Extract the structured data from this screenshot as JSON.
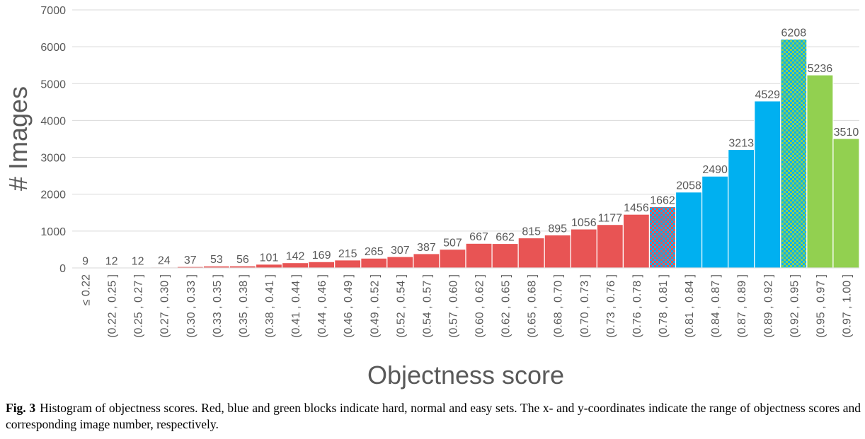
{
  "chart_data": {
    "type": "bar",
    "title": "",
    "xlabel": "Objectness score",
    "ylabel": "# Images",
    "ylim": [
      0,
      7000
    ],
    "yticks": [
      0,
      1000,
      2000,
      3000,
      4000,
      5000,
      6000,
      7000
    ],
    "grid": "horizontal",
    "categories": [
      "≤ 0.22",
      "(0.22 , 0.25 ]",
      "(0.25 , 0.27 ]",
      "(0.27 , 0.30 ]",
      "(0.30 , 0.33 ]",
      "(0.33 , 0.35 ]",
      "(0.35 , 0.38 ]",
      "(0.38 , 0.41 ]",
      "(0.41 , 0.44 ]",
      "(0.44 , 0.46 ]",
      "(0.46 , 0.49 ]",
      "(0.49 , 0.52 ]",
      "(0.52 , 0.54 ]",
      "(0.54 , 0.57 ]",
      "(0.57 , 0.60 ]",
      "(0.60 , 0.62 ]",
      "(0.62 , 0.65 ]",
      "(0.65 , 0.68 ]",
      "(0.68 , 0.70 ]",
      "(0.70 , 0.73 ]",
      "(0.73 , 0.76 ]",
      "(0.76 , 0.78 ]",
      "(0.78 , 0.81 ]",
      "(0.81 , 0.84 ]",
      "(0.84 , 0.87 ]",
      "(0.87 , 0.89 ]",
      "(0.89 , 0.92 ]",
      "(0.92 , 0.95 ]",
      "(0.95 , 0.97 ]",
      "(0.97 , 1.00 ]"
    ],
    "values": [
      9,
      12,
      12,
      24,
      37,
      53,
      56,
      101,
      142,
      169,
      215,
      265,
      307,
      387,
      507,
      667,
      662,
      815,
      895,
      1056,
      1177,
      1456,
      1662,
      2058,
      2490,
      3213,
      4529,
      6208,
      5236,
      3510
    ],
    "bar_fill": [
      "red",
      "red",
      "red",
      "red",
      "red",
      "red",
      "red",
      "red",
      "red",
      "red",
      "red",
      "red",
      "red",
      "red",
      "red",
      "red",
      "red",
      "red",
      "red",
      "red",
      "red",
      "red",
      "red-blue-checker",
      "blue",
      "blue",
      "blue",
      "blue",
      "green-blue-checker",
      "green",
      "green"
    ],
    "colors": {
      "red": "#e85454",
      "blue": "#00b0f0",
      "green": "#92d050"
    }
  },
  "caption": {
    "label": "Fig. 3",
    "text": "Histogram of objectness scores. Red, blue and green blocks indicate hard, normal and easy sets. The x- and y-coordinates indicate the range of objectness scores and corresponding image number, respectively."
  }
}
